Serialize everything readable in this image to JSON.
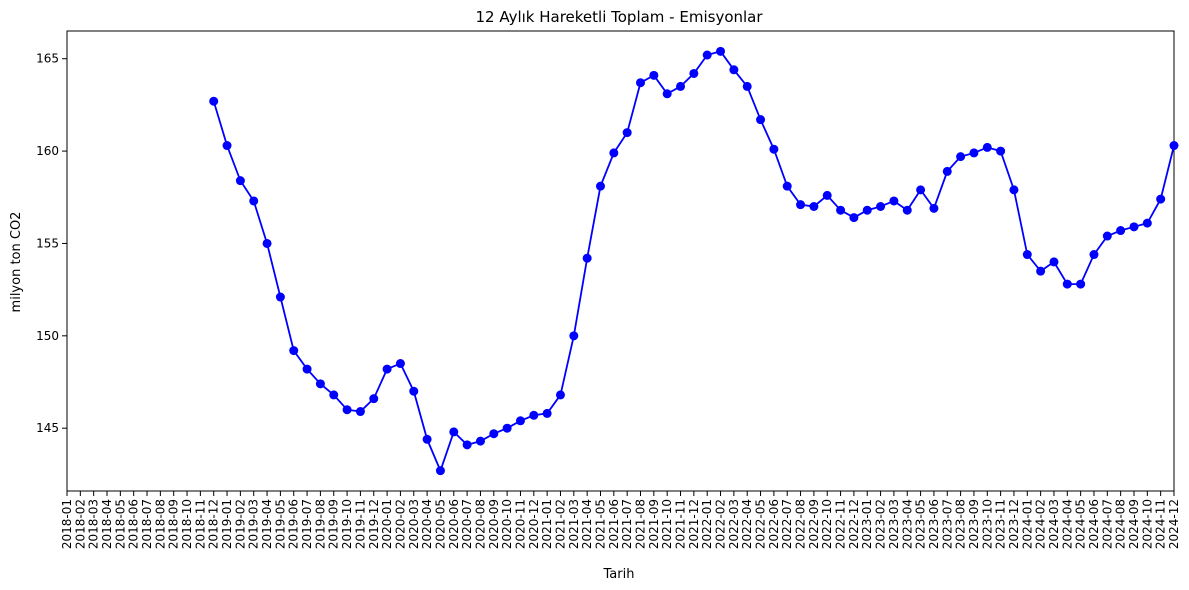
{
  "chart_data": {
    "type": "line",
    "title": "12 Aylık Hareketli Toplam - Emisyonlar",
    "xlabel": "Tarih",
    "ylabel": "milyon ton CO2",
    "ylim": [
      141.6,
      166.5
    ],
    "yticks": [
      145,
      150,
      155,
      160,
      165
    ],
    "grid": false,
    "color": "#0000ff",
    "categories": [
      "2018-01",
      "2018-02",
      "2018-03",
      "2018-04",
      "2018-05",
      "2018-06",
      "2018-07",
      "2018-08",
      "2018-09",
      "2018-10",
      "2018-11",
      "2018-12",
      "2019-01",
      "2019-02",
      "2019-03",
      "2019-04",
      "2019-05",
      "2019-06",
      "2019-07",
      "2019-08",
      "2019-09",
      "2019-10",
      "2019-11",
      "2019-12",
      "2020-01",
      "2020-02",
      "2020-03",
      "2020-04",
      "2020-05",
      "2020-06",
      "2020-07",
      "2020-08",
      "2020-09",
      "2020-10",
      "2020-11",
      "2020-12",
      "2021-01",
      "2021-02",
      "2021-03",
      "2021-04",
      "2021-05",
      "2021-06",
      "2021-07",
      "2021-08",
      "2021-09",
      "2021-10",
      "2021-11",
      "2021-12",
      "2022-01",
      "2022-02",
      "2022-03",
      "2022-04",
      "2022-05",
      "2022-06",
      "2022-07",
      "2022-08",
      "2022-09",
      "2022-10",
      "2022-11",
      "2022-12",
      "2023-01",
      "2023-02",
      "2023-03",
      "2023-04",
      "2023-05",
      "2023-06",
      "2023-07",
      "2023-08",
      "2023-09",
      "2023-10",
      "2023-11",
      "2023-12",
      "2024-01",
      "2024-02",
      "2024-03",
      "2024-04",
      "2024-05",
      "2024-06",
      "2024-07",
      "2024-08",
      "2024-09",
      "2024-10",
      "2024-11",
      "2024-12"
    ],
    "values": [
      null,
      null,
      null,
      null,
      null,
      null,
      null,
      null,
      null,
      null,
      null,
      162.7,
      160.3,
      158.4,
      157.3,
      155.0,
      152.1,
      149.2,
      148.2,
      147.4,
      146.8,
      146.0,
      145.9,
      146.6,
      148.2,
      148.5,
      147.0,
      144.4,
      142.7,
      144.8,
      144.1,
      144.3,
      144.7,
      145.0,
      145.4,
      145.7,
      145.8,
      146.8,
      150.0,
      154.2,
      158.1,
      159.9,
      161.0,
      163.7,
      164.1,
      163.1,
      163.5,
      164.2,
      165.2,
      165.4,
      164.4,
      163.5,
      161.7,
      160.1,
      158.1,
      157.1,
      157.0,
      157.6,
      156.8,
      156.4,
      156.8,
      157.0,
      157.3,
      156.8,
      157.9,
      156.9,
      158.9,
      159.7,
      159.9,
      160.2,
      160.0,
      157.9,
      154.4,
      153.5,
      154.0,
      152.8,
      152.8,
      154.4,
      155.4,
      155.7,
      155.9,
      156.1,
      157.4,
      160.3
    ]
  }
}
